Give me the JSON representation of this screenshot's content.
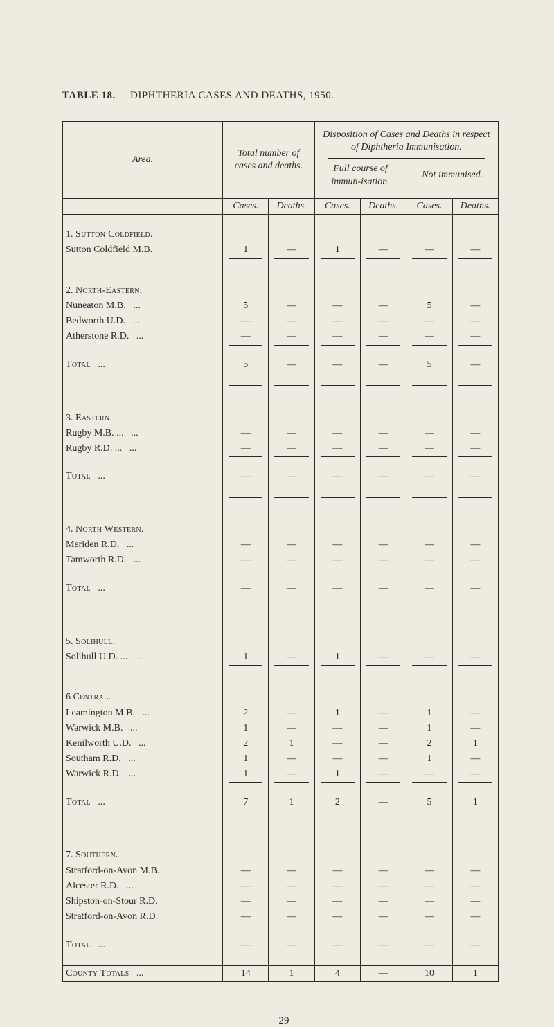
{
  "page_number": "29",
  "title": {
    "label": "TABLE 18.",
    "text": "DIPHTHERIA  CASES  AND  DEATHS,  1950."
  },
  "headers": {
    "area": "Area.",
    "total": "Total number of cases and deaths.",
    "disposition": "Disposition of Cases and Deaths in respect of Diphtheria Immunisation.",
    "full_course": "Full course of immun-isation.",
    "not_immunised": "Not immunised.",
    "cases": "Cases.",
    "deaths": "Deaths."
  },
  "dash": "—",
  "rows": [
    {
      "kind": "section",
      "label": "1. Sutton Coldfield."
    },
    {
      "kind": "data",
      "label": "Sutton Coldfield M.B.",
      "v": [
        "1",
        "—",
        "1",
        "—",
        "—",
        "—"
      ]
    },
    {
      "kind": "rule"
    },
    {
      "kind": "section",
      "label": "2. North-Eastern."
    },
    {
      "kind": "data",
      "label": "Nuneaton M.B.",
      "dots": true,
      "v": [
        "5",
        "—",
        "—",
        "—",
        "5",
        "—"
      ]
    },
    {
      "kind": "data",
      "label": "Bedworth U.D.",
      "dots": true,
      "v": [
        "—",
        "—",
        "—",
        "—",
        "—",
        "—"
      ]
    },
    {
      "kind": "data",
      "label": "Atherstone R.D.",
      "dots": true,
      "v": [
        "—",
        "—",
        "—",
        "—",
        "—",
        "—"
      ]
    },
    {
      "kind": "rule"
    },
    {
      "kind": "total",
      "label": "Total",
      "dots": true,
      "v": [
        "5",
        "—",
        "—",
        "—",
        "5",
        "—"
      ]
    },
    {
      "kind": "rule"
    },
    {
      "kind": "section",
      "label": "3. Eastern."
    },
    {
      "kind": "data",
      "label": "Rugby M.B. ...",
      "dots": true,
      "v": [
        "—",
        "—",
        "—",
        "—",
        "—",
        "—"
      ]
    },
    {
      "kind": "data",
      "label": "Rugby R.D. ...",
      "dots": true,
      "v": [
        "—",
        "—",
        "—",
        "—",
        "—",
        "—"
      ]
    },
    {
      "kind": "rule"
    },
    {
      "kind": "total",
      "label": "Total",
      "dots": true,
      "v": [
        "—",
        "—",
        "—",
        "—",
        "—",
        "—"
      ]
    },
    {
      "kind": "rule"
    },
    {
      "kind": "section",
      "label": "4. North Western."
    },
    {
      "kind": "data",
      "label": "Meriden R.D.",
      "dots": true,
      "v": [
        "—",
        "—",
        "—",
        "—",
        "—",
        "—"
      ]
    },
    {
      "kind": "data",
      "label": "Tamworth R.D.",
      "dots": true,
      "v": [
        "—",
        "—",
        "—",
        "—",
        "—",
        "—"
      ]
    },
    {
      "kind": "rule"
    },
    {
      "kind": "total",
      "label": "Total",
      "dots": true,
      "v": [
        "—",
        "—",
        "—",
        "—",
        "—",
        "—"
      ]
    },
    {
      "kind": "rule"
    },
    {
      "kind": "section",
      "label": "5. Solihull."
    },
    {
      "kind": "data",
      "label": "Solihull U.D. ...",
      "dots": true,
      "v": [
        "1",
        "—",
        "1",
        "—",
        "—",
        "—"
      ]
    },
    {
      "kind": "rule"
    },
    {
      "kind": "section",
      "label": "6  Central."
    },
    {
      "kind": "data",
      "label": "Leamington M B.",
      "dots": true,
      "v": [
        "2",
        "—",
        "1",
        "—",
        "1",
        "—"
      ]
    },
    {
      "kind": "data",
      "label": "Warwick M.B.",
      "dots": true,
      "v": [
        "1",
        "—",
        "—",
        "—",
        "1",
        "—"
      ]
    },
    {
      "kind": "data",
      "label": "Kenilworth U.D.",
      "dots": true,
      "v": [
        "2",
        "1",
        "—",
        "—",
        "2",
        "1"
      ]
    },
    {
      "kind": "data",
      "label": "Southam R.D.",
      "dots": true,
      "v": [
        "1",
        "—",
        "—",
        "—",
        "1",
        "—"
      ]
    },
    {
      "kind": "data",
      "label": "Warwick R.D.",
      "dots": true,
      "v": [
        "1",
        "—",
        "1",
        "—",
        "—",
        "—"
      ]
    },
    {
      "kind": "rule"
    },
    {
      "kind": "total",
      "label": "Total",
      "dots": true,
      "v": [
        "7",
        "1",
        "2",
        "—",
        "5",
        "1"
      ]
    },
    {
      "kind": "rule"
    },
    {
      "kind": "section",
      "label": "7. Southern."
    },
    {
      "kind": "data",
      "label": "Stratford-on-Avon M.B.",
      "dots": false,
      "v": [
        "—",
        "—",
        "—",
        "—",
        "—",
        "—"
      ]
    },
    {
      "kind": "data",
      "label": "Alcester R.D.",
      "dots": true,
      "v": [
        "—",
        "—",
        "—",
        "—",
        "—",
        "—"
      ]
    },
    {
      "kind": "data",
      "label": "Shipston-on-Stour R.D.",
      "dots": false,
      "v": [
        "—",
        "—",
        "—",
        "—",
        "—",
        "—"
      ]
    },
    {
      "kind": "data",
      "label": "Stratford-on-Avon R.D.",
      "dots": false,
      "v": [
        "—",
        "—",
        "—",
        "—",
        "—",
        "—"
      ]
    },
    {
      "kind": "rule"
    },
    {
      "kind": "total",
      "label": "Total",
      "dots": true,
      "v": [
        "—",
        "—",
        "—",
        "—",
        "—",
        "—"
      ]
    },
    {
      "kind": "framerule"
    },
    {
      "kind": "grand",
      "label": "County Totals",
      "dots": true,
      "v": [
        "14",
        "1",
        "4",
        "—",
        "10",
        "1"
      ]
    }
  ]
}
